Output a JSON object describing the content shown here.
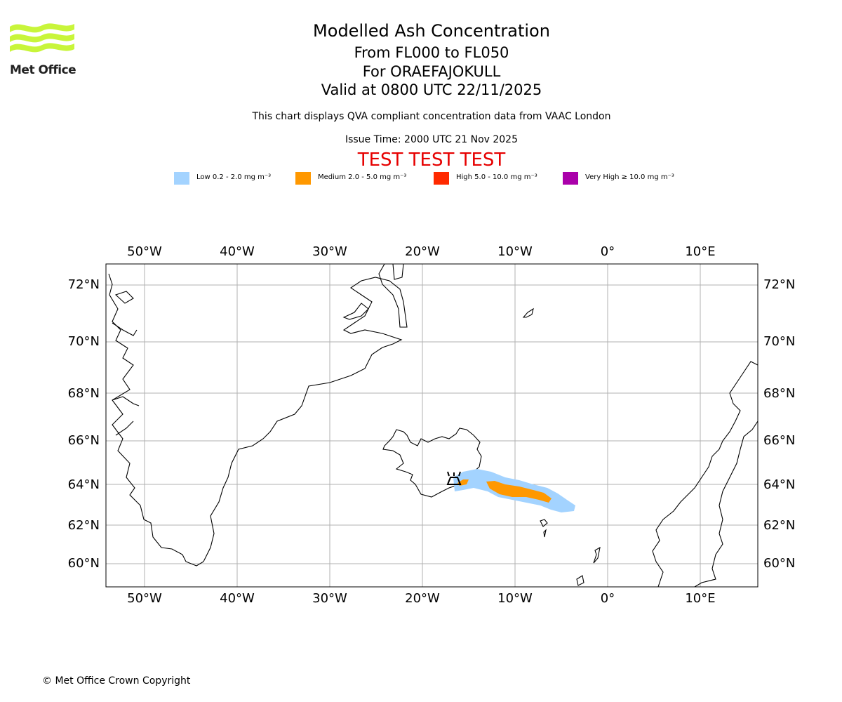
{
  "header": {
    "title": "Modelled Ash Concentration",
    "levels": "From FL000 to FL050",
    "volcano": "For ORAEFAJOKULL",
    "valid": "Valid at 0800 UTC 22/11/2025",
    "description": "This chart displays QVA compliant concentration data from VAAC London",
    "issue_time": "Issue Time: 2000 UTC 21 Nov 2025",
    "test_banner": "TEST TEST TEST"
  },
  "logo": {
    "text": "Met Office",
    "icon": "met-office-wave-logo",
    "color": "#c8f53a"
  },
  "legend": [
    {
      "label": "Low 0.2 - 2.0 mg m⁻³",
      "color": "#a3d3ff"
    },
    {
      "label": "Medium 2.0 - 5.0 mg m⁻³",
      "color": "#ff9800"
    },
    {
      "label": "High 5.0 - 10.0 mg m⁻³",
      "color": "#ff2a00"
    },
    {
      "label": "Very High ≥ 10.0 mg m⁻³",
      "color": "#aa00aa"
    }
  ],
  "map": {
    "lon_ticks": [
      "50°W",
      "40°W",
      "30°W",
      "20°W",
      "10°W",
      "0°",
      "10°E"
    ],
    "lat_ticks": [
      "72°N",
      "70°N",
      "68°N",
      "66°N",
      "64°N",
      "62°N",
      "60°N"
    ],
    "volcano_symbol": "volcano-icon"
  },
  "footer": {
    "copyright": "© Met Office Crown Copyright"
  }
}
